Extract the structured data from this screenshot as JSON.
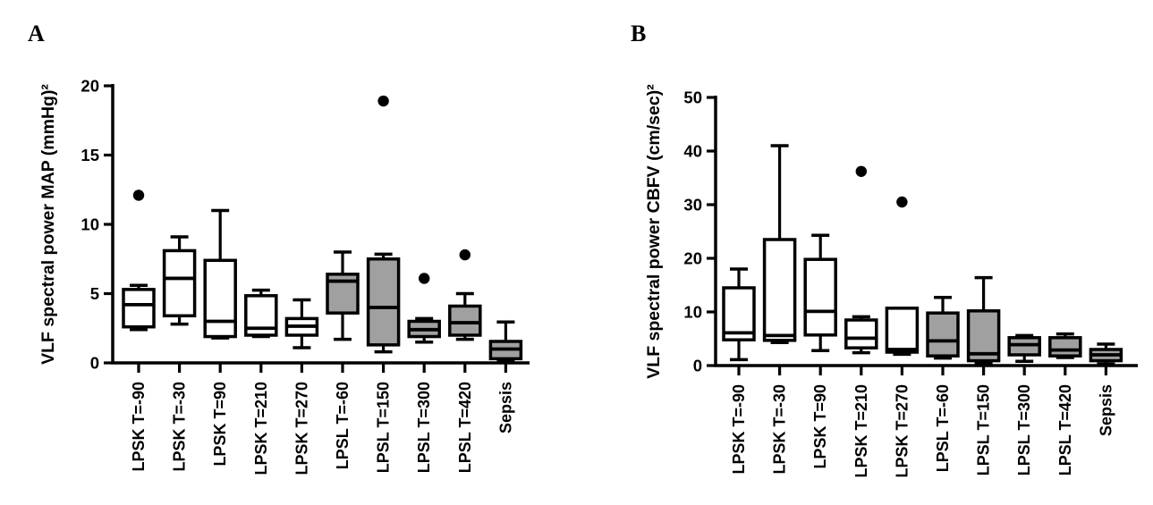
{
  "figure": {
    "background": "#ffffff",
    "stroke_color": "#000000",
    "open_box_fill": "#ffffff",
    "shaded_box_fill": "#a0a0a0",
    "outlier_color": "#000000"
  },
  "chart_data": [
    {
      "type": "box",
      "panel_label": "A",
      "title": "",
      "xlabel": "",
      "ylabel": "VLF spectral power MAP (mmHg)²",
      "ylim": [
        0,
        20
      ],
      "yticks": [
        0,
        5,
        10,
        15,
        20
      ],
      "grid": false,
      "legend": "none",
      "categories": [
        "LPSK T=-90",
        "LPSK T=-30",
        "LPSK T=90",
        "LPSK T=210",
        "LPSK T=270",
        "LPSL T=-60",
        "LPSL T=150",
        "LPSL T=300",
        "LPSL T=420",
        "Sepsis"
      ],
      "series": [
        {
          "category": "LPSK T=-90",
          "shaded": false,
          "whisker_low": 2.4,
          "q1": 2.6,
          "median": 4.2,
          "q3": 5.3,
          "whisker_high": 5.6,
          "outliers": [
            12.1
          ]
        },
        {
          "category": "LPSK T=-30",
          "shaded": false,
          "whisker_low": 2.8,
          "q1": 3.4,
          "median": 6.1,
          "q3": 8.1,
          "whisker_high": 9.1,
          "outliers": []
        },
        {
          "category": "LPSK T=90",
          "shaded": false,
          "whisker_low": 1.8,
          "q1": 1.9,
          "median": 3.0,
          "q3": 7.4,
          "whisker_high": 11.0,
          "outliers": []
        },
        {
          "category": "LPSK T=210",
          "shaded": false,
          "whisker_low": 1.9,
          "q1": 2.0,
          "median": 2.5,
          "q3": 4.85,
          "whisker_high": 5.25,
          "outliers": []
        },
        {
          "category": "LPSK T=270",
          "shaded": false,
          "whisker_low": 1.1,
          "q1": 2.0,
          "median": 2.65,
          "q3": 3.2,
          "whisker_high": 4.55,
          "outliers": []
        },
        {
          "category": "LPSL T=-60",
          "shaded": true,
          "whisker_low": 1.7,
          "q1": 3.6,
          "median": 5.9,
          "q3": 6.4,
          "whisker_high": 8.0,
          "outliers": []
        },
        {
          "category": "LPSL T=150",
          "shaded": true,
          "whisker_low": 0.8,
          "q1": 1.3,
          "median": 4.0,
          "q3": 7.5,
          "whisker_high": 7.85,
          "outliers": [
            18.9
          ]
        },
        {
          "category": "LPSL T=300",
          "shaded": true,
          "whisker_low": 1.5,
          "q1": 1.9,
          "median": 2.4,
          "q3": 3.0,
          "whisker_high": 3.2,
          "outliers": [
            6.1
          ]
        },
        {
          "category": "LPSL T=420",
          "shaded": true,
          "whisker_low": 1.7,
          "q1": 2.0,
          "median": 2.9,
          "q3": 4.1,
          "whisker_high": 5.0,
          "outliers": [
            7.8
          ]
        },
        {
          "category": "Sepsis",
          "shaded": true,
          "whisker_low": 0.2,
          "q1": 0.3,
          "median": 1.0,
          "q3": 1.55,
          "whisker_high": 2.95,
          "outliers": []
        }
      ]
    },
    {
      "type": "box",
      "panel_label": "B",
      "title": "",
      "xlabel": "",
      "ylabel": "VLF spectral power CBFV (cm/sec)²",
      "ylim": [
        0,
        50
      ],
      "yticks": [
        0,
        10,
        20,
        30,
        40,
        50
      ],
      "grid": false,
      "legend": "none",
      "categories": [
        "LPSK T=-90",
        "LPSK T=-30",
        "LPSK T=90",
        "LPSK T=210",
        "LPSK T=270",
        "LPSL T=-60",
        "LPSL T=150",
        "LPSL T=300",
        "LPSL T=420",
        "Sepsis"
      ],
      "series": [
        {
          "category": "LPSK T=-90",
          "shaded": false,
          "whisker_low": 1.1,
          "q1": 4.8,
          "median": 6.1,
          "q3": 14.5,
          "whisker_high": 18.0,
          "outliers": []
        },
        {
          "category": "LPSK T=-30",
          "shaded": false,
          "whisker_low": 4.3,
          "q1": 4.7,
          "median": 5.6,
          "q3": 23.5,
          "whisker_high": 41.0,
          "outliers": []
        },
        {
          "category": "LPSK T=90",
          "shaded": false,
          "whisker_low": 2.8,
          "q1": 5.7,
          "median": 10.1,
          "q3": 19.8,
          "whisker_high": 24.3,
          "outliers": []
        },
        {
          "category": "LPSK T=210",
          "shaded": false,
          "whisker_low": 2.4,
          "q1": 3.3,
          "median": 5.1,
          "q3": 8.5,
          "whisker_high": 9.1,
          "outliers": [
            36.2
          ]
        },
        {
          "category": "LPSK T=270",
          "shaded": false,
          "whisker_low": 2.1,
          "q1": 2.5,
          "median": 3.0,
          "q3": 10.7,
          "whisker_high": 10.7,
          "outliers": [
            30.5
          ]
        },
        {
          "category": "LPSL T=-60",
          "shaded": true,
          "whisker_low": 1.4,
          "q1": 1.8,
          "median": 4.6,
          "q3": 9.8,
          "whisker_high": 12.7,
          "outliers": []
        },
        {
          "category": "LPSL T=150",
          "shaded": true,
          "whisker_low": 0.5,
          "q1": 0.9,
          "median": 2.2,
          "q3": 10.2,
          "whisker_high": 16.4,
          "outliers": []
        },
        {
          "category": "LPSL T=300",
          "shaded": true,
          "whisker_low": 0.8,
          "q1": 2.0,
          "median": 3.9,
          "q3": 5.2,
          "whisker_high": 5.6,
          "outliers": []
        },
        {
          "category": "LPSL T=420",
          "shaded": true,
          "whisker_low": 1.5,
          "q1": 1.8,
          "median": 2.9,
          "q3": 5.2,
          "whisker_high": 5.9,
          "outliers": []
        },
        {
          "category": "Sepsis",
          "shaded": true,
          "whisker_low": 0.3,
          "q1": 0.9,
          "median": 2.0,
          "q3": 3.0,
          "whisker_high": 4.0,
          "outliers": []
        }
      ]
    }
  ]
}
